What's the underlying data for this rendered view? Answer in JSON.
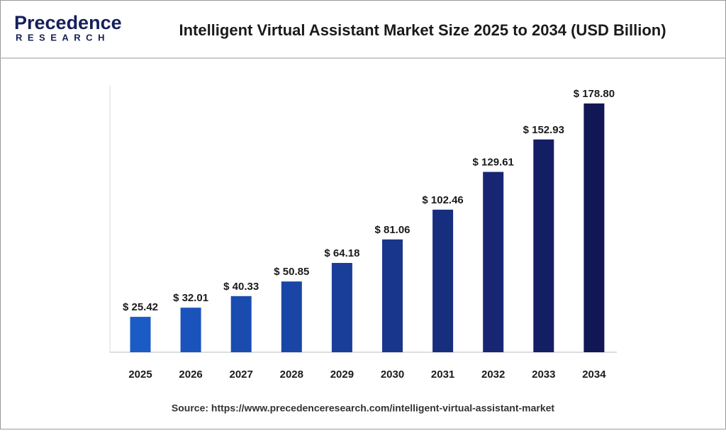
{
  "logo": {
    "name": "Precedence",
    "tagline": "RESEARCH"
  },
  "chart_data": {
    "type": "bar",
    "title": "Intelligent Virtual Assistant Market Size 2025 to 2034 (USD Billion)",
    "categories": [
      "2025",
      "2026",
      "2027",
      "2028",
      "2029",
      "2030",
      "2031",
      "2032",
      "2033",
      "2034"
    ],
    "values": [
      25.42,
      32.01,
      40.33,
      50.85,
      64.18,
      81.06,
      102.46,
      129.61,
      152.93,
      178.8
    ],
    "value_labels": [
      "$ 25.42",
      "$ 32.01",
      "$ 40.33",
      "$ 50.85",
      "$ 64.18",
      "$ 81.06",
      "$ 102.46",
      "$ 129.61",
      "$ 152.93",
      "$ 178.80"
    ],
    "colors": [
      "#1b5bc6",
      "#1a53bb",
      "#1a4cb0",
      "#1946a6",
      "#193e99",
      "#18368c",
      "#172e7f",
      "#162673",
      "#141e64",
      "#111754"
    ],
    "source": "Source: https://www.precedenceresearch.com/intelligent-virtual-assistant-market"
  }
}
